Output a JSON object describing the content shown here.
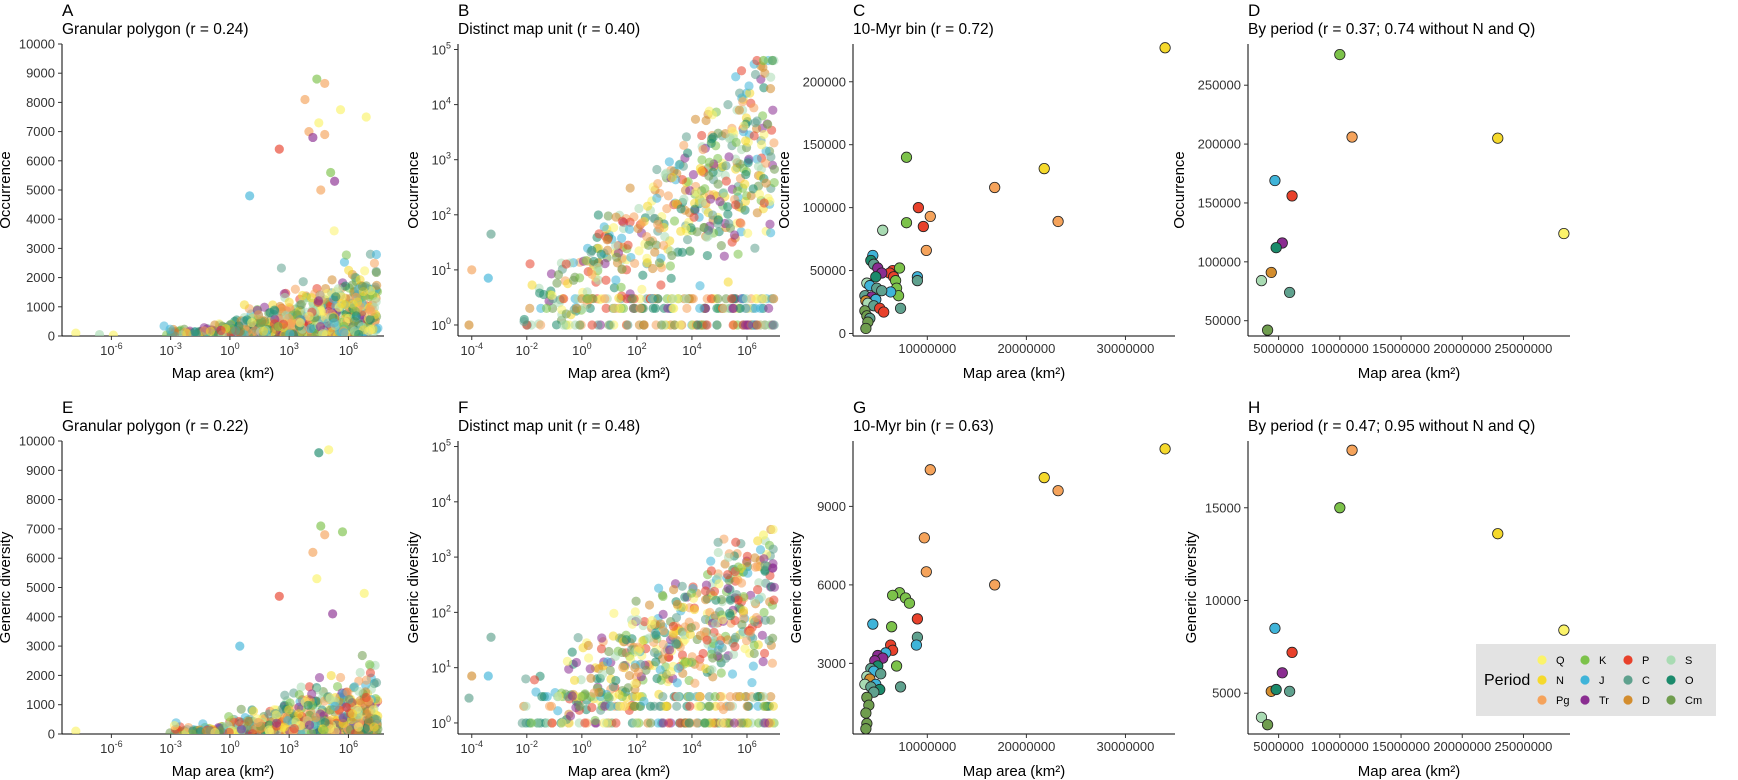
{
  "figure": {
    "period_colors": {
      "Q": "#fbf36a",
      "N": "#f5d92c",
      "Pg": "#f5a35b",
      "K": "#7cc24a",
      "J": "#3fb4d9",
      "Tr": "#8a2d91",
      "P": "#e8412b",
      "C": "#5fa18e",
      "D": "#d38d2e",
      "S": "#a9dbb3",
      "O": "#1b8a6b",
      "Cm": "#6f9d4e"
    },
    "legend": {
      "title": "Period",
      "entries": [
        {
          "code": "Q",
          "label": "Q"
        },
        {
          "code": "K",
          "label": "K"
        },
        {
          "code": "P",
          "label": "P"
        },
        {
          "code": "S",
          "label": "S"
        },
        {
          "code": "N",
          "label": "N"
        },
        {
          "code": "J",
          "label": "J"
        },
        {
          "code": "C",
          "label": "C"
        },
        {
          "code": "O",
          "label": "O"
        },
        {
          "code": "Pg",
          "label": "Pg"
        },
        {
          "code": "Tr",
          "label": "Tr"
        },
        {
          "code": "D",
          "label": "D"
        },
        {
          "code": "Cm",
          "label": "Cm"
        }
      ]
    }
  },
  "chart_data": [
    {
      "panel": "A",
      "type": "scatter",
      "title": "Granular polygon (r = 0.24)",
      "xlabel": "Map area (km²)",
      "ylabel": "Occurrence",
      "xscale": "log",
      "xlim_log10": [
        -8.5,
        7.8
      ],
      "xticks_log10": [
        -6,
        -3,
        0,
        3,
        6
      ],
      "ylim": [
        0,
        10000
      ],
      "yticks": [
        0,
        1000,
        2000,
        3000,
        4000,
        5000,
        6000,
        7000,
        8000,
        9000,
        10000
      ],
      "notable_points": [
        {
          "x_log10": 4.4,
          "y": 8800,
          "period": "K"
        },
        {
          "x_log10": 4.8,
          "y": 8650,
          "period": "Pg"
        },
        {
          "x_log10": 3.8,
          "y": 8100,
          "period": "Pg"
        },
        {
          "x_log10": 5.6,
          "y": 7750,
          "period": "Q"
        },
        {
          "x_log10": 6.9,
          "y": 7500,
          "period": "Q"
        },
        {
          "x_log10": 4.5,
          "y": 7300,
          "period": "Q"
        },
        {
          "x_log10": 4.0,
          "y": 7000,
          "period": "Pg"
        },
        {
          "x_log10": 4.2,
          "y": 6800,
          "period": "Tr"
        },
        {
          "x_log10": 4.8,
          "y": 6900,
          "period": "Pg"
        },
        {
          "x_log10": 2.5,
          "y": 6400,
          "period": "P"
        },
        {
          "x_log10": 5.1,
          "y": 5600,
          "period": "K"
        },
        {
          "x_log10": 5.3,
          "y": 5300,
          "period": "Tr"
        },
        {
          "x_log10": 1.0,
          "y": 4800,
          "period": "J"
        },
        {
          "x_log10": 4.6,
          "y": 5000,
          "period": "Pg"
        },
        {
          "x_log10": -7.8,
          "y": 100,
          "period": "Q"
        },
        {
          "x_log10": -6.6,
          "y": 50,
          "period": "S"
        },
        {
          "x_log10": -5.9,
          "y": 30,
          "period": "Q"
        }
      ],
      "cloud": {
        "x_log10_range": [
          -3.5,
          7.5
        ],
        "y_max_typical": 3000
      }
    },
    {
      "panel": "B",
      "type": "scatter",
      "title": "Distinct map unit (r = 0.40)",
      "xlabel": "Map area (km²)",
      "ylabel": "Occurrence",
      "xscale": "log",
      "yscale": "log",
      "xlim_log10": [
        -4.5,
        7.2
      ],
      "xticks_log10": [
        -4,
        -2,
        0,
        2,
        4,
        6
      ],
      "ylim_log10": [
        -0.2,
        5.1
      ],
      "yticks_log10": [
        0,
        1,
        2,
        3,
        4,
        5
      ],
      "notable_points": [
        {
          "x_log10": -4.0,
          "y_log10": 1.0,
          "period": "Pg"
        },
        {
          "x_log10": -4.1,
          "y_log10": 0.0,
          "period": "D"
        },
        {
          "x_log10": -3.3,
          "y_log10": 1.65,
          "period": "C"
        },
        {
          "x_log10": -3.4,
          "y_log10": 0.85,
          "period": "J"
        },
        {
          "x_log10": 6.6,
          "y_log10": 4.8,
          "period": "K"
        }
      ],
      "cloud": {
        "x_log10_range": [
          -2.5,
          7.0
        ],
        "y_log10_range": [
          0,
          4.8
        ]
      }
    },
    {
      "panel": "C",
      "type": "scatter",
      "title": "10-Myr bin (r = 0.72)",
      "xlabel": "Map area (km²)",
      "ylabel": "Occurrence",
      "xlim": [
        2500000,
        35000000
      ],
      "xticks": [
        10000000,
        20000000,
        30000000
      ],
      "ylim": [
        -2000,
        230000
      ],
      "yticks": [
        0,
        50000,
        100000,
        150000,
        200000
      ],
      "points": [
        {
          "x": 34000000,
          "y": 227000,
          "period": "N"
        },
        {
          "x": 21800000,
          "y": 131000,
          "period": "N"
        },
        {
          "x": 23200000,
          "y": 89000,
          "period": "Pg"
        },
        {
          "x": 16800000,
          "y": 116000,
          "period": "Pg"
        },
        {
          "x": 7900000,
          "y": 140000,
          "period": "K"
        },
        {
          "x": 9100000,
          "y": 100000,
          "period": "P"
        },
        {
          "x": 10300000,
          "y": 93000,
          "period": "Pg"
        },
        {
          "x": 7900000,
          "y": 88000,
          "period": "K"
        },
        {
          "x": 9600000,
          "y": 85000,
          "period": "P"
        },
        {
          "x": 9900000,
          "y": 66000,
          "period": "Pg"
        },
        {
          "x": 5500000,
          "y": 82000,
          "period": "S"
        },
        {
          "x": 9000000,
          "y": 45000,
          "period": "J"
        },
        {
          "x": 9000000,
          "y": 42000,
          "period": "C"
        },
        {
          "x": 6500000,
          "y": 50000,
          "period": "P"
        },
        {
          "x": 6200000,
          "y": 48000,
          "period": "P"
        },
        {
          "x": 6600000,
          "y": 45000,
          "period": "P"
        },
        {
          "x": 7200000,
          "y": 52000,
          "period": "K"
        },
        {
          "x": 6800000,
          "y": 42000,
          "period": "K"
        },
        {
          "x": 6900000,
          "y": 36000,
          "period": "K"
        },
        {
          "x": 7100000,
          "y": 30000,
          "period": "K"
        },
        {
          "x": 6300000,
          "y": 33000,
          "period": "J"
        },
        {
          "x": 7300000,
          "y": 20000,
          "period": "C"
        },
        {
          "x": 4500000,
          "y": 62000,
          "period": "J"
        },
        {
          "x": 4300000,
          "y": 58000,
          "period": "O"
        },
        {
          "x": 4600000,
          "y": 55000,
          "period": "C"
        },
        {
          "x": 5000000,
          "y": 52000,
          "period": "Tr"
        },
        {
          "x": 5400000,
          "y": 48000,
          "period": "Tr"
        },
        {
          "x": 4800000,
          "y": 45000,
          "period": "O"
        },
        {
          "x": 3900000,
          "y": 40000,
          "period": "S"
        },
        {
          "x": 4200000,
          "y": 38000,
          "period": "J"
        },
        {
          "x": 4900000,
          "y": 36000,
          "period": "C"
        },
        {
          "x": 5400000,
          "y": 34000,
          "period": "C"
        },
        {
          "x": 3700000,
          "y": 30000,
          "period": "C"
        },
        {
          "x": 4400000,
          "y": 29000,
          "period": "Tr"
        },
        {
          "x": 4800000,
          "y": 27000,
          "period": "J"
        },
        {
          "x": 3800000,
          "y": 26000,
          "period": "D"
        },
        {
          "x": 4000000,
          "y": 24000,
          "period": "S"
        },
        {
          "x": 4600000,
          "y": 22000,
          "period": "C"
        },
        {
          "x": 5200000,
          "y": 20000,
          "period": "P"
        },
        {
          "x": 3700000,
          "y": 18000,
          "period": "Cm"
        },
        {
          "x": 5600000,
          "y": 17000,
          "period": "P"
        },
        {
          "x": 3900000,
          "y": 14000,
          "period": "Cm"
        },
        {
          "x": 4200000,
          "y": 12000,
          "period": "C"
        },
        {
          "x": 4000000,
          "y": 9000,
          "period": "Cm"
        },
        {
          "x": 3800000,
          "y": 4000,
          "period": "Cm"
        }
      ]
    },
    {
      "panel": "D",
      "type": "scatter",
      "title": "By period (r = 0.37; 0.74 without N and Q)",
      "xlabel": "Map area (km²)",
      "ylabel": "Occurrence",
      "xlim": [
        2500000,
        28800000
      ],
      "xticks": [
        5000000,
        10000000,
        15000000,
        20000000,
        25000000
      ],
      "ylim": [
        37000,
        285000
      ],
      "yticks": [
        50000,
        100000,
        150000,
        200000,
        250000
      ],
      "points": [
        {
          "x": 10000000,
          "y": 276000,
          "period": "K"
        },
        {
          "x": 11000000,
          "y": 206000,
          "period": "Pg"
        },
        {
          "x": 22900000,
          "y": 205000,
          "period": "N"
        },
        {
          "x": 4700000,
          "y": 169000,
          "period": "J"
        },
        {
          "x": 6100000,
          "y": 156000,
          "period": "P"
        },
        {
          "x": 5300000,
          "y": 116000,
          "period": "Tr"
        },
        {
          "x": 4800000,
          "y": 112000,
          "period": "O"
        },
        {
          "x": 28300000,
          "y": 124000,
          "period": "Q"
        },
        {
          "x": 4400000,
          "y": 91000,
          "period": "D"
        },
        {
          "x": 3600000,
          "y": 84000,
          "period": "S"
        },
        {
          "x": 5900000,
          "y": 74000,
          "period": "C"
        },
        {
          "x": 4100000,
          "y": 42000,
          "period": "Cm"
        }
      ]
    },
    {
      "panel": "E",
      "type": "scatter",
      "title": "Granular polygon (r = 0.22)",
      "xlabel": "Map area (km²)",
      "ylabel": "Generic diversity",
      "xscale": "log",
      "xlim_log10": [
        -8.5,
        7.8
      ],
      "xticks_log10": [
        -6,
        -3,
        0,
        3,
        6
      ],
      "ylim": [
        0,
        10000
      ],
      "yticks": [
        0,
        1000,
        2000,
        3000,
        4000,
        5000,
        6000,
        7000,
        8000,
        9000,
        10000
      ],
      "notable_points": [
        {
          "x_log10": 4.5,
          "y": 9600,
          "period": "O"
        },
        {
          "x_log10": 5.0,
          "y": 9700,
          "period": "Q"
        },
        {
          "x_log10": 4.6,
          "y": 7100,
          "period": "K"
        },
        {
          "x_log10": 4.8,
          "y": 6800,
          "period": "Pg"
        },
        {
          "x_log10": 5.7,
          "y": 6900,
          "period": "K"
        },
        {
          "x_log10": 4.2,
          "y": 6200,
          "period": "Pg"
        },
        {
          "x_log10": 6.8,
          "y": 4800,
          "period": "Q"
        },
        {
          "x_log10": 2.5,
          "y": 4700,
          "period": "P"
        },
        {
          "x_log10": 4.4,
          "y": 5300,
          "period": "Q"
        },
        {
          "x_log10": 5.2,
          "y": 4100,
          "period": "Tr"
        },
        {
          "x_log10": 0.5,
          "y": 3000,
          "period": "J"
        },
        {
          "x_log10": -7.8,
          "y": 100,
          "period": "Q"
        }
      ],
      "cloud": {
        "x_log10_range": [
          -3.5,
          7.5
        ],
        "y_max_typical": 2500
      }
    },
    {
      "panel": "F",
      "type": "scatter",
      "title": "Distinct map unit (r = 0.48)",
      "xlabel": "Map area (km²)",
      "ylabel": "Generic diversity",
      "xscale": "log",
      "yscale": "log",
      "xlim_log10": [
        -4.5,
        7.2
      ],
      "xticks_log10": [
        -4,
        -2,
        0,
        2,
        4,
        6
      ],
      "ylim_log10": [
        -0.2,
        5.1
      ],
      "yticks_log10": [
        0,
        1,
        2,
        3,
        4,
        5
      ],
      "notable_points": [
        {
          "x_log10": -4.0,
          "y_log10": 0.85,
          "period": "D"
        },
        {
          "x_log10": -4.1,
          "y_log10": 0.45,
          "period": "C"
        },
        {
          "x_log10": -3.3,
          "y_log10": 1.55,
          "period": "C"
        },
        {
          "x_log10": -3.4,
          "y_log10": 0.85,
          "period": "J"
        },
        {
          "x_log10": 6.6,
          "y_log10": 3.4,
          "period": "Q"
        }
      ],
      "cloud": {
        "x_log10_range": [
          -2.5,
          7.0
        ],
        "y_log10_range": [
          0,
          3.5
        ]
      }
    },
    {
      "panel": "G",
      "type": "scatter",
      "title": "10-Myr bin (r = 0.63)",
      "xlabel": "Map area (km²)",
      "ylabel": "Generic diversity",
      "xlim": [
        2500000,
        35000000
      ],
      "xticks": [
        10000000,
        20000000,
        30000000
      ],
      "ylim": [
        300,
        11500
      ],
      "yticks": [
        3000,
        6000,
        9000
      ],
      "points": [
        {
          "x": 34000000,
          "y": 11200,
          "period": "N"
        },
        {
          "x": 21800000,
          "y": 10100,
          "period": "N"
        },
        {
          "x": 23200000,
          "y": 9600,
          "period": "Pg"
        },
        {
          "x": 10300000,
          "y": 10400,
          "period": "Pg"
        },
        {
          "x": 9700000,
          "y": 7800,
          "period": "Pg"
        },
        {
          "x": 9900000,
          "y": 6500,
          "period": "Pg"
        },
        {
          "x": 16800000,
          "y": 6000,
          "period": "Pg"
        },
        {
          "x": 7200000,
          "y": 5700,
          "period": "K"
        },
        {
          "x": 6500000,
          "y": 5600,
          "period": "K"
        },
        {
          "x": 7800000,
          "y": 5500,
          "period": "K"
        },
        {
          "x": 8200000,
          "y": 5300,
          "period": "K"
        },
        {
          "x": 6400000,
          "y": 4400,
          "period": "K"
        },
        {
          "x": 9000000,
          "y": 4700,
          "period": "P"
        },
        {
          "x": 4500000,
          "y": 4500,
          "period": "J"
        },
        {
          "x": 9000000,
          "y": 4000,
          "period": "C"
        },
        {
          "x": 8900000,
          "y": 3700,
          "period": "J"
        },
        {
          "x": 6300000,
          "y": 3700,
          "period": "P"
        },
        {
          "x": 6500000,
          "y": 3500,
          "period": "P"
        },
        {
          "x": 5800000,
          "y": 3400,
          "period": "J"
        },
        {
          "x": 6900000,
          "y": 2900,
          "period": "K"
        },
        {
          "x": 5000000,
          "y": 3300,
          "period": "Tr"
        },
        {
          "x": 5500000,
          "y": 3200,
          "period": "Tr"
        },
        {
          "x": 4700000,
          "y": 3100,
          "period": "Tr"
        },
        {
          "x": 5000000,
          "y": 2900,
          "period": "O"
        },
        {
          "x": 4300000,
          "y": 2800,
          "period": "C"
        },
        {
          "x": 4600000,
          "y": 2700,
          "period": "J"
        },
        {
          "x": 5300000,
          "y": 2600,
          "period": "C"
        },
        {
          "x": 3900000,
          "y": 2500,
          "period": "S"
        },
        {
          "x": 4200000,
          "y": 2400,
          "period": "D"
        },
        {
          "x": 3700000,
          "y": 2200,
          "period": "S"
        },
        {
          "x": 4800000,
          "y": 2200,
          "period": "J"
        },
        {
          "x": 4300000,
          "y": 2100,
          "period": "C"
        },
        {
          "x": 5200000,
          "y": 2000,
          "period": "O"
        },
        {
          "x": 4600000,
          "y": 1900,
          "period": "C"
        },
        {
          "x": 7300000,
          "y": 2100,
          "period": "C"
        },
        {
          "x": 3900000,
          "y": 1700,
          "period": "Cm"
        },
        {
          "x": 4100000,
          "y": 1400,
          "period": "Cm"
        },
        {
          "x": 3800000,
          "y": 1100,
          "period": "Cm"
        },
        {
          "x": 3900000,
          "y": 700,
          "period": "Cm"
        },
        {
          "x": 3800000,
          "y": 500,
          "period": "Cm"
        }
      ]
    },
    {
      "panel": "H",
      "type": "scatter",
      "title": "By period (r = 0.47; 0.95 without N and Q)",
      "xlabel": "Map area (km²)",
      "ylabel": "Generic diversity",
      "xlim": [
        2500000,
        28800000
      ],
      "xticks": [
        5000000,
        10000000,
        15000000,
        20000000,
        25000000
      ],
      "ylim": [
        2800,
        18600
      ],
      "yticks": [
        5000,
        10000,
        15000
      ],
      "points": [
        {
          "x": 11000000,
          "y": 18100,
          "period": "Pg"
        },
        {
          "x": 10000000,
          "y": 15000,
          "period": "K"
        },
        {
          "x": 22900000,
          "y": 13600,
          "period": "N"
        },
        {
          "x": 4700000,
          "y": 8500,
          "period": "J"
        },
        {
          "x": 28300000,
          "y": 8400,
          "period": "Q"
        },
        {
          "x": 6100000,
          "y": 7200,
          "period": "P"
        },
        {
          "x": 5300000,
          "y": 6100,
          "period": "Tr"
        },
        {
          "x": 4400000,
          "y": 5100,
          "period": "D"
        },
        {
          "x": 4800000,
          "y": 5200,
          "period": "O"
        },
        {
          "x": 5900000,
          "y": 5100,
          "period": "C"
        },
        {
          "x": 3600000,
          "y": 3700,
          "period": "S"
        },
        {
          "x": 4100000,
          "y": 3300,
          "period": "Cm"
        }
      ]
    }
  ]
}
